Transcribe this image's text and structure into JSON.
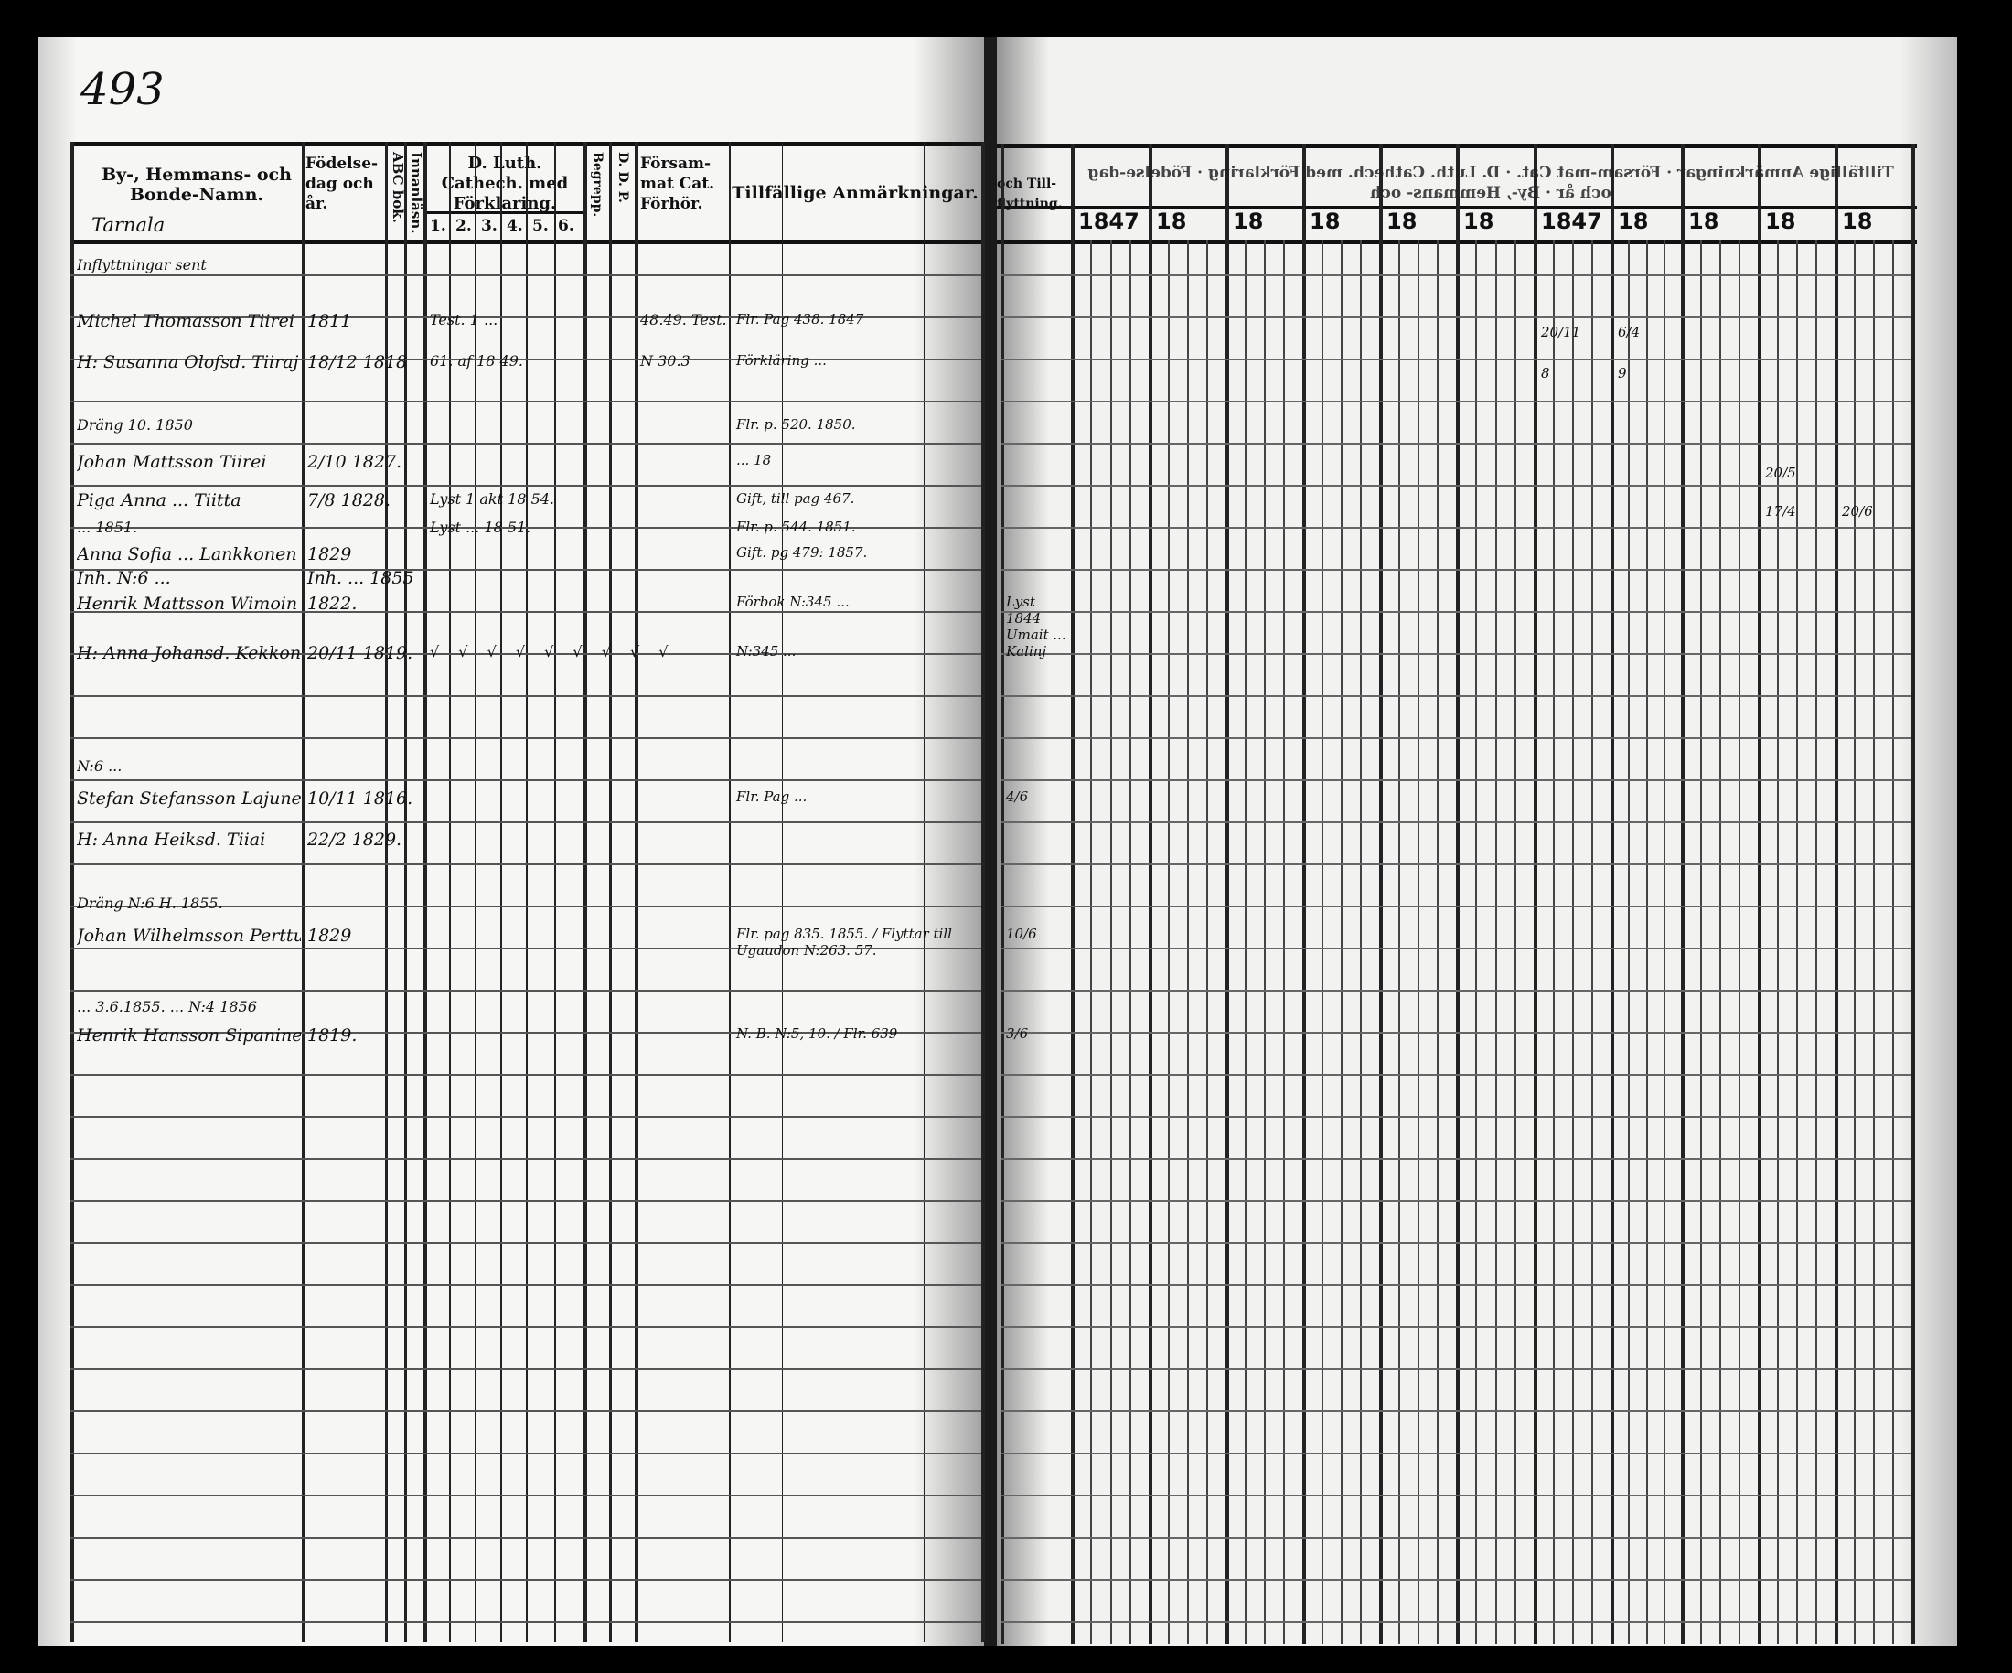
{
  "left_page": {
    "page_number": "493",
    "village": "Tarnala",
    "header": {
      "name_col": "By-, Hemmans- och Bonde-Namn.",
      "birth_col": "Födelse-dag och år.",
      "abc_col": "ABC bok.",
      "innanlasn_col": "Innanläsn.",
      "catechism_col": "D. Luth. Cathech. med Förklaring.",
      "catechism_sub": [
        "1.",
        "2.",
        "3.",
        "4.",
        "5.",
        "6."
      ],
      "begrep_col": "Begrepp.",
      "dd_col": "D. D. P.",
      "forsamm_col": "Försam-mat Cat. Förhör.",
      "notes_col": "Tillfällige Anmärkningar."
    },
    "entries": [
      {
        "name": "Inflyttningar sent",
        "birth": "",
        "catech": "",
        "forsamm": "",
        "notes": ""
      },
      {
        "name": "Michel Thomasson Tiirei",
        "birth": "1811",
        "catech": "Test. 1 ...",
        "forsamm": "48.49. Test.",
        "notes": "Flr. Pag 438. 1847"
      },
      {
        "name": "H: Susanna Olofsd. Tiiraj",
        "birth": "18/12 1818",
        "catech": "61. af 18 49.",
        "forsamm": "N 30.3",
        "notes": "Förkläring ..."
      },
      {
        "name": "Dräng 10. 1850",
        "birth": "",
        "catech": "",
        "forsamm": "",
        "notes": "Flr. p. 520. 1850."
      },
      {
        "name": "Johan Mattsson Tiirei",
        "birth": "2/10 1827.",
        "catech": "",
        "forsamm": "",
        "notes": "... 18"
      },
      {
        "name": "Piga Anna ... Tiitta",
        "birth": "7/8 1828.",
        "catech": "Lyst 1 akt 18 54.",
        "forsamm": "",
        "notes": "Gift, till pag 467."
      },
      {
        "name": "... 1851.",
        "birth": "",
        "catech": "Lyst ... 18 51.",
        "forsamm": "",
        "notes": "Flr. p. 544. 1851."
      },
      {
        "name": "Anna Sofia ... Lankkonen",
        "birth": "1829",
        "catech": "",
        "forsamm": "",
        "notes": "Gift. pg 479: 1857."
      },
      {
        "name": "Inh. N:6 ...",
        "birth": "Inh. ... 1855",
        "catech": "",
        "forsamm": "",
        "notes": ""
      },
      {
        "name": "Henrik Mattsson Wimoin",
        "birth": "1822.",
        "catech": "",
        "forsamm": "",
        "notes": "Förbok N:345 ..."
      },
      {
        "name": "H: Anna Johansd. Kekkon",
        "birth": "20/11 1819.",
        "catech": "√ √ √ √ √ √ √ √ √",
        "forsamm": "",
        "notes": "N:345 ..."
      },
      {
        "name": "N:6 ...",
        "birth": "",
        "catech": "",
        "forsamm": "",
        "notes": ""
      },
      {
        "name": "Stefan Stefansson Lajunen",
        "birth": "10/11 1816.",
        "catech": "",
        "forsamm": "",
        "notes": "Flr. Pag ..."
      },
      {
        "name": "H: Anna Heiksd. Tiiai",
        "birth": "22/2 1829.",
        "catech": "",
        "forsamm": "",
        "notes": ""
      },
      {
        "name": "Dräng N:6 H. 1855.",
        "birth": "",
        "catech": "",
        "forsamm": "",
        "notes": ""
      },
      {
        "name": "Johan Wilhelmsson Perttunen",
        "birth": "1829",
        "catech": "",
        "forsamm": "",
        "notes": "Flr. pag 835. 1855. / Flyttar till Ugaudon N:263. 57."
      },
      {
        "name": "... 3.6.1855. ... N:4 1856",
        "birth": "",
        "catech": "",
        "forsamm": "",
        "notes": ""
      },
      {
        "name": "Henrik Hansson Sipaninen",
        "birth": "1819.",
        "catech": "",
        "forsamm": "",
        "notes": "N. B. N:5, 10. / Flr. 639"
      }
    ]
  },
  "right_page": {
    "header": {
      "notes_cont": "och Till-flyttning.",
      "mirror_text": "Tillfällige Anmärkningar · Försam-mat Cat. · D. Luth. Cathech. med Förklaring · Födelse-dag och år · By-, Hemmans- och"
    },
    "years": [
      "1847",
      "18",
      "18",
      "18",
      "18",
      "18",
      "1847",
      "18",
      "18",
      "18",
      "18"
    ],
    "notes": [
      {
        "text": "Lyst 1844 Umait ... Kalinj",
        "row": 9
      },
      {
        "text": "4/6",
        "row": 12
      },
      {
        "text": "10/6",
        "row": 15
      },
      {
        "text": "3/6",
        "row": 17
      }
    ],
    "marks": [
      {
        "col": 6,
        "row": 1,
        "text": "20/11"
      },
      {
        "col": 6,
        "row": 2,
        "text": "8"
      },
      {
        "col": 7,
        "row": 1,
        "text": "6/4"
      },
      {
        "col": 7,
        "row": 2,
        "text": "9"
      },
      {
        "col": 9,
        "row": 4,
        "text": "20/5"
      },
      {
        "col": 9,
        "row": 5,
        "text": "17/4"
      },
      {
        "col": 10,
        "row": 5,
        "text": "20/6"
      }
    ]
  }
}
